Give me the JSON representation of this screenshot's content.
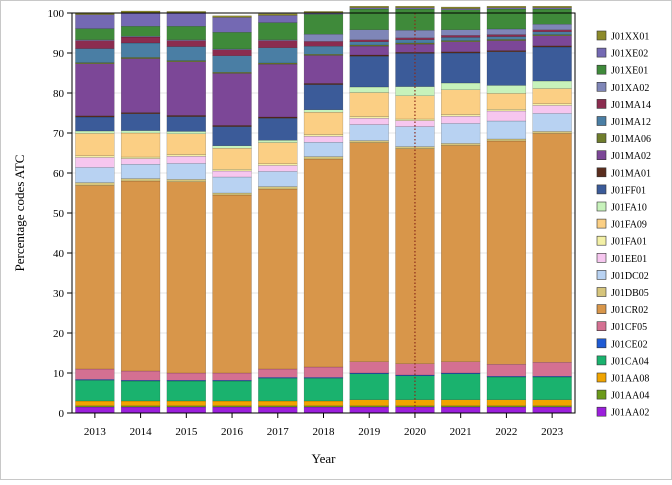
{
  "chart_data": {
    "type": "bar",
    "stacked": true,
    "xlabel": "Year",
    "ylabel": "Percentage codes ATC",
    "ylim": [
      0,
      100
    ],
    "yticks": [
      0,
      10,
      20,
      30,
      40,
      50,
      60,
      70,
      80,
      90,
      100
    ],
    "categories": [
      "2013",
      "2014",
      "2015",
      "2016",
      "2017",
      "2018",
      "2019",
      "2020",
      "2021",
      "2022",
      "2023"
    ],
    "reference_line": {
      "x": "2020",
      "color": "#8b2a1a",
      "style": "dotted"
    },
    "legend_position": "right",
    "series": [
      {
        "name": "J01AA02",
        "color": "#9b1fdc",
        "values": [
          1.5,
          1.5,
          1.5,
          1.5,
          1.5,
          1.5,
          1.5,
          1.5,
          1.5,
          1.5,
          1.5
        ]
      },
      {
        "name": "J01AA04",
        "color": "#6b9a1a",
        "values": [
          0.3,
          0.3,
          0.3,
          0.3,
          0.3,
          0.3,
          0.3,
          0.3,
          0.3,
          0.3,
          0.3
        ]
      },
      {
        "name": "J01AA08",
        "color": "#f0a400",
        "values": [
          1.2,
          1.2,
          1.2,
          1.2,
          1.2,
          1.2,
          1.5,
          1.5,
          1.5,
          1.5,
          1.5
        ]
      },
      {
        "name": "J01CA04",
        "color": "#1ab26e",
        "values": [
          5.2,
          5.0,
          5.0,
          5.0,
          5.7,
          5.7,
          6.5,
          6.0,
          6.5,
          5.7,
          5.7
        ]
      },
      {
        "name": "J01CE02",
        "color": "#1f5bd4",
        "values": [
          0.2,
          0.2,
          0.2,
          0.2,
          0.2,
          0.2,
          0.2,
          0.2,
          0.2,
          0.2,
          0.2
        ]
      },
      {
        "name": "J01CF05",
        "color": "#d47092",
        "values": [
          2.6,
          2.3,
          1.8,
          1.8,
          2.1,
          2.6,
          2.8,
          2.8,
          2.8,
          3.0,
          3.5
        ]
      },
      {
        "name": "J01CR02",
        "color": "#d8964a",
        "values": [
          45.9,
          47.5,
          47.8,
          44.5,
          45.0,
          52.0,
          54.8,
          53.8,
          54.1,
          55.8,
          57.2
        ]
      },
      {
        "name": "J01DB05",
        "color": "#d6c57c",
        "values": [
          0.7,
          0.6,
          0.6,
          0.5,
          0.6,
          0.6,
          0.5,
          0.5,
          0.5,
          0.5,
          0.5
        ]
      },
      {
        "name": "J01DC02",
        "color": "#b8d2f2",
        "values": [
          3.8,
          3.6,
          4.0,
          4.0,
          3.8,
          3.6,
          4.0,
          5.0,
          5.0,
          4.5,
          4.5
        ]
      },
      {
        "name": "J01EE01",
        "color": "#f6c6ef",
        "values": [
          2.5,
          1.4,
          1.8,
          1.5,
          1.5,
          1.5,
          1.6,
          1.5,
          1.8,
          2.5,
          2.0
        ]
      },
      {
        "name": "J01FA01",
        "color": "#f3f0a6",
        "values": [
          0.4,
          0.4,
          0.4,
          0.4,
          0.4,
          0.4,
          0.4,
          0.4,
          0.4,
          0.4,
          0.4
        ]
      },
      {
        "name": "J01FA09",
        "color": "#fbcf84",
        "values": [
          5.6,
          6.0,
          5.2,
          5.3,
          5.3,
          5.6,
          6.0,
          5.8,
          6.2,
          4.0,
          3.8
        ]
      },
      {
        "name": "J01FA10",
        "color": "#c7f2bb",
        "values": [
          0.6,
          0.6,
          0.6,
          0.6,
          0.6,
          0.6,
          1.4,
          2.3,
          1.7,
          2.0,
          1.9
        ]
      },
      {
        "name": "J01FF01",
        "color": "#3b5b99",
        "values": [
          3.5,
          4.2,
          3.7,
          4.8,
          5.5,
          6.3,
          7.7,
          8.3,
          7.5,
          8.4,
          8.5
        ]
      },
      {
        "name": "J01MA01",
        "color": "#5a2d1e",
        "values": [
          0.3,
          0.3,
          0.3,
          0.3,
          0.3,
          0.3,
          0.3,
          0.3,
          0.3,
          0.3,
          0.3
        ]
      },
      {
        "name": "J01MA02",
        "color": "#7c4797",
        "values": [
          13.0,
          13.5,
          13.4,
          13.0,
          13.2,
          7.0,
          2.2,
          2.0,
          2.5,
          2.5,
          2.5
        ]
      },
      {
        "name": "J01MA06",
        "color": "#6f7d2c",
        "values": [
          0.3,
          0.3,
          0.3,
          0.3,
          0.3,
          0.3,
          0.3,
          0.3,
          0.3,
          0.3,
          0.3
        ]
      },
      {
        "name": "J01MA12",
        "color": "#4a7ea4",
        "values": [
          3.5,
          3.6,
          3.5,
          4.1,
          3.8,
          2.0,
          0.8,
          0.8,
          0.8,
          0.7,
          0.7
        ]
      },
      {
        "name": "J01MA14",
        "color": "#8b2c4f",
        "values": [
          2.0,
          1.5,
          1.5,
          1.5,
          1.8,
          1.2,
          0.5,
          0.5,
          0.5,
          0.5,
          0.5
        ]
      },
      {
        "name": "J01XA02",
        "color": "#7f86b8",
        "values": [
          0.2,
          0.2,
          0.2,
          0.2,
          0.2,
          1.8,
          2.5,
          1.9,
          1.4,
          1.4,
          1.4
        ]
      },
      {
        "name": "J01XE01",
        "color": "#3f8a3a",
        "values": [
          2.8,
          2.5,
          3.4,
          4.2,
          4.3,
          5.0,
          5.2,
          5.3,
          5.0,
          5.0,
          3.8
        ]
      },
      {
        "name": "J01XE02",
        "color": "#7469b3",
        "values": [
          3.5,
          3.4,
          3.3,
          3.7,
          1.8,
          0.3,
          0.3,
          0.3,
          0.3,
          0.3,
          0.3
        ]
      },
      {
        "name": "J01XX01",
        "color": "#8c8a2a",
        "values": [
          0.4,
          0.4,
          0.4,
          0.4,
          0.4,
          0.4,
          0.4,
          0.4,
          0.4,
          0.4,
          0.4
        ]
      }
    ]
  }
}
